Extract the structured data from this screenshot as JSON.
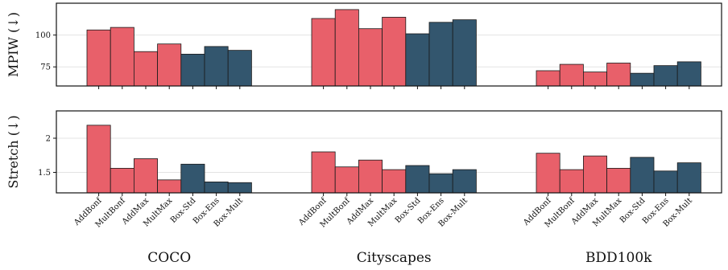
{
  "chart_data": [
    {
      "type": "bar",
      "ylabel": "MPIW (↓)",
      "ylim": [
        60,
        125
      ],
      "yticks": [
        75,
        100
      ],
      "grid": "horizontal",
      "groups": [
        "COCO",
        "Cityscapes",
        "BDD100k"
      ],
      "categories": [
        "AddBonf",
        "MultBonf",
        "AddMax",
        "MultMax",
        "Box-Std",
        "Box-Ens",
        "Box-Mult"
      ],
      "category_colors": [
        "#e8606a",
        "#e8606a",
        "#e8606a",
        "#e8606a",
        "#33566e",
        "#33566e",
        "#33566e"
      ],
      "values": [
        [
          104,
          106,
          87,
          93,
          85,
          91,
          88
        ],
        [
          113,
          120,
          105,
          114,
          101,
          110,
          112
        ],
        [
          72,
          77,
          71,
          78,
          70,
          76,
          79
        ]
      ]
    },
    {
      "type": "bar",
      "ylabel": "Stretch (↓)",
      "ylim": [
        1.2,
        2.4
      ],
      "yticks": [
        1.5,
        2.0
      ],
      "grid": "horizontal",
      "groups": [
        "COCO",
        "Cityscapes",
        "BDD100k"
      ],
      "categories": [
        "AddBonf",
        "MultBonf",
        "AddMax",
        "MultMax",
        "Box-Std",
        "Box-Ens",
        "Box-Mult"
      ],
      "category_colors": [
        "#e8606a",
        "#e8606a",
        "#e8606a",
        "#e8606a",
        "#33566e",
        "#33566e",
        "#33566e"
      ],
      "values": [
        [
          2.19,
          1.56,
          1.7,
          1.39,
          1.62,
          1.36,
          1.35
        ],
        [
          1.8,
          1.58,
          1.68,
          1.54,
          1.6,
          1.48,
          1.54
        ],
        [
          1.78,
          1.54,
          1.74,
          1.56,
          1.72,
          1.52,
          1.64
        ]
      ]
    }
  ]
}
